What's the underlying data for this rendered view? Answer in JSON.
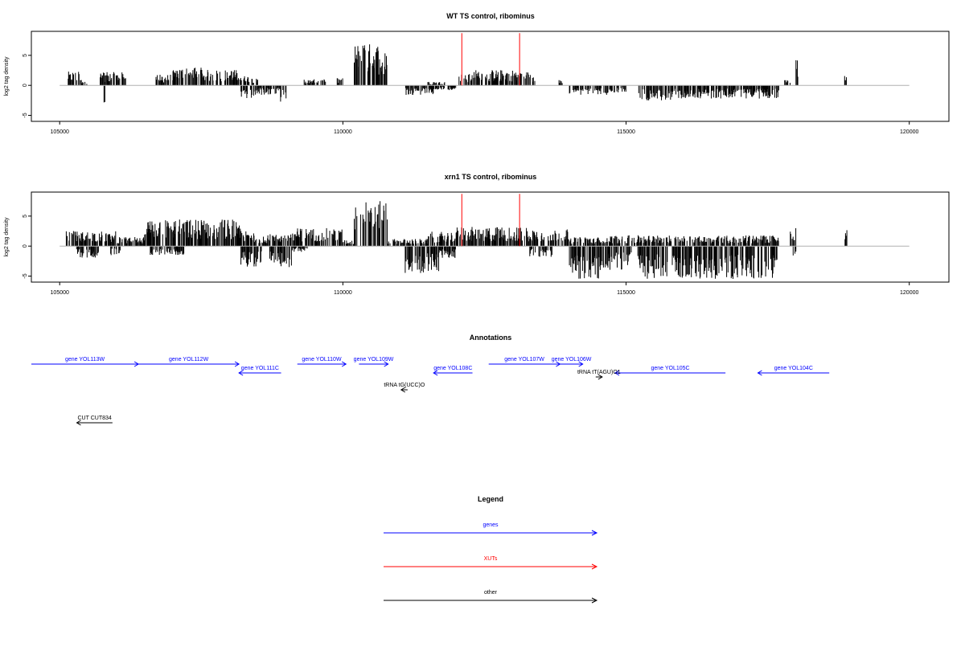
{
  "colors": {
    "gene": "#0000ff",
    "xut": "#ff0000",
    "other": "#000000",
    "bar": "#000000",
    "baseline": "#b0b0b0"
  },
  "chart_data": [
    {
      "type": "bar",
      "title": "WT TS control, ribominus",
      "xlabel": "",
      "ylabel": "log2 tag density",
      "xlim": [
        105000,
        120000
      ],
      "ylim": [
        -6,
        9
      ],
      "xticks": [
        105000,
        110000,
        115000,
        120000
      ],
      "yticks": [
        -5,
        0,
        5
      ],
      "grid": false,
      "red_markers_x": [
        112100,
        113120
      ],
      "profile": {
        "top": [
          [
            105150,
            105350,
            2.3
          ],
          [
            105350,
            105500,
            1.0
          ],
          [
            105700,
            106200,
            2.2
          ],
          [
            106700,
            107000,
            1.8
          ],
          [
            107000,
            107500,
            3.0
          ],
          [
            107500,
            108200,
            2.6
          ],
          [
            108200,
            108500,
            1.6
          ],
          [
            109300,
            109700,
            1.0
          ],
          [
            109900,
            110000,
            1.2
          ],
          [
            110200,
            110800,
            7.0
          ],
          [
            111500,
            111800,
            0.6
          ],
          [
            112050,
            112300,
            1.9
          ],
          [
            112300,
            113100,
            2.6
          ],
          [
            113100,
            113400,
            2.3
          ],
          [
            113800,
            113900,
            0.9
          ],
          [
            117800,
            117900,
            0.9
          ],
          [
            118000,
            118050,
            4.6
          ],
          [
            118850,
            118900,
            1.6
          ]
        ],
        "bottom": [
          [
            105750,
            105800,
            -3.0
          ],
          [
            108200,
            108500,
            -2.2
          ],
          [
            108500,
            108900,
            -1.6
          ],
          [
            108900,
            109000,
            -3.0
          ],
          [
            111100,
            111600,
            -1.6
          ],
          [
            111600,
            112000,
            -0.8
          ],
          [
            114000,
            114700,
            -1.6
          ],
          [
            114700,
            115000,
            -1.2
          ],
          [
            115200,
            115800,
            -2.6
          ],
          [
            115800,
            117700,
            -2.2
          ]
        ]
      }
    },
    {
      "type": "bar",
      "title": "xrn1 TS control, ribominus",
      "xlabel": "",
      "ylabel": "log2 tag density",
      "xlim": [
        105000,
        120000
      ],
      "ylim": [
        -6,
        9
      ],
      "xticks": [
        105000,
        110000,
        115000,
        120000
      ],
      "yticks": [
        -5,
        0,
        5
      ],
      "grid": false,
      "red_markers_x": [
        112100,
        113120
      ],
      "profile": {
        "top": [
          [
            105100,
            106000,
            2.5
          ],
          [
            106000,
            106500,
            1.5
          ],
          [
            106500,
            108200,
            4.5
          ],
          [
            108200,
            108500,
            2.5
          ],
          [
            108500,
            109000,
            2.0
          ],
          [
            109000,
            110000,
            3.0
          ],
          [
            110000,
            110200,
            1.0
          ],
          [
            110200,
            110800,
            7.5
          ],
          [
            110800,
            111500,
            1.2
          ],
          [
            111500,
            112000,
            2.4
          ],
          [
            112000,
            113400,
            3.2
          ],
          [
            113400,
            114000,
            2.8
          ],
          [
            114000,
            114700,
            1.5
          ],
          [
            114700,
            117700,
            1.8
          ],
          [
            117900,
            118000,
            3.2
          ],
          [
            118850,
            118900,
            3.0
          ]
        ],
        "bottom": [
          [
            105300,
            105700,
            -2.0
          ],
          [
            105900,
            106100,
            -1.5
          ],
          [
            106600,
            107200,
            -1.5
          ],
          [
            108200,
            108600,
            -3.5
          ],
          [
            108700,
            109100,
            -3.5
          ],
          [
            109100,
            109400,
            -1.0
          ],
          [
            111100,
            111700,
            -4.5
          ],
          [
            111700,
            112000,
            -2.0
          ],
          [
            113300,
            113700,
            -1.8
          ],
          [
            114000,
            114700,
            -5.5
          ],
          [
            114700,
            115100,
            -4.0
          ],
          [
            115200,
            117700,
            -5.5
          ],
          [
            117950,
            118000,
            -1.6
          ]
        ]
      }
    }
  ],
  "annotations": {
    "title": "Annotations",
    "features": [
      {
        "label": "gene YOL113W",
        "start": 105000,
        "end": 106650,
        "strand": "+",
        "kind": "gene",
        "row": 0
      },
      {
        "label": "gene YOL112W",
        "start": 106650,
        "end": 108200,
        "strand": "+",
        "kind": "gene",
        "row": 0
      },
      {
        "label": "gene YOL111C",
        "start": 108200,
        "end": 108850,
        "strand": "-",
        "kind": "gene",
        "row": 1
      },
      {
        "label": "gene YOL110W",
        "start": 109100,
        "end": 109850,
        "strand": "+",
        "kind": "gene",
        "row": 0
      },
      {
        "label": "gene YOL109W",
        "start": 110050,
        "end": 110500,
        "strand": "+",
        "kind": "gene",
        "row": 0
      },
      {
        "label": "gene YOL108C",
        "start": 111200,
        "end": 111800,
        "strand": "-",
        "kind": "gene",
        "row": 1
      },
      {
        "label": "gene YOL107W",
        "start": 112050,
        "end": 113150,
        "strand": "+",
        "kind": "gene",
        "row": 0
      },
      {
        "label": "gene YOL106W",
        "start": 113150,
        "end": 113500,
        "strand": "+",
        "kind": "gene",
        "row": 0
      },
      {
        "label": "gene YOL105C",
        "start": 114000,
        "end": 115700,
        "strand": "-",
        "kind": "gene",
        "row": 1
      },
      {
        "label": "gene YOL104C",
        "start": 116200,
        "end": 117300,
        "strand": "-",
        "kind": "gene",
        "row": 1
      },
      {
        "label": "tRNA tG(UCC)O",
        "start": 110700,
        "end": 110800,
        "strand": "-",
        "kind": "other",
        "row": 3
      },
      {
        "label": "tRNA tT(AGU)O1",
        "start": 113700,
        "end": 113800,
        "strand": "+",
        "kind": "other",
        "row": 2
      },
      {
        "label": "CUT CUT834",
        "start": 105700,
        "end": 106250,
        "strand": "-",
        "kind": "other",
        "row": 6
      }
    ]
  },
  "legend": {
    "title": "Legend",
    "items": [
      {
        "label": "genes",
        "kind": "gene"
      },
      {
        "label": "XUTs",
        "kind": "xut"
      },
      {
        "label": "other",
        "kind": "other"
      }
    ]
  }
}
